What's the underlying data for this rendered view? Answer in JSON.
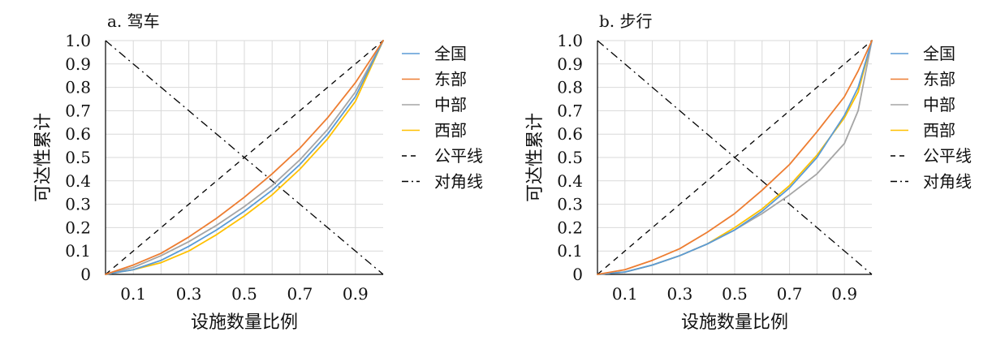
{
  "chart_data": [
    {
      "type": "line",
      "title": "a. 驾车",
      "xlabel": "设施数量比例",
      "ylabel": "可达性累计",
      "xlim": [
        0,
        1
      ],
      "ylim": [
        0,
        1
      ],
      "xticks": [
        "0.1",
        "0.3",
        "0.5",
        "0.7",
        "0.9"
      ],
      "yticks": [
        "0",
        "0.1",
        "0.2",
        "0.3",
        "0.4",
        "0.5",
        "0.6",
        "0.7",
        "0.8",
        "0.9",
        "1.0"
      ],
      "grid": true,
      "legend_position": "right",
      "series": [
        {
          "name": "全国",
          "color": "#5b9bd5",
          "style": "solid",
          "x": [
            0,
            0.1,
            0.2,
            0.3,
            0.4,
            0.5,
            0.6,
            0.7,
            0.8,
            0.9,
            1.0
          ],
          "y": [
            0,
            0.02,
            0.06,
            0.12,
            0.19,
            0.27,
            0.36,
            0.47,
            0.6,
            0.76,
            1.0
          ]
        },
        {
          "name": "东部",
          "color": "#ed7d31",
          "style": "solid",
          "x": [
            0,
            0.1,
            0.2,
            0.3,
            0.4,
            0.5,
            0.6,
            0.7,
            0.8,
            0.9,
            1.0
          ],
          "y": [
            0,
            0.04,
            0.09,
            0.16,
            0.24,
            0.33,
            0.43,
            0.54,
            0.67,
            0.82,
            1.0
          ]
        },
        {
          "name": "中部",
          "color": "#a5a5a5",
          "style": "solid",
          "x": [
            0,
            0.1,
            0.2,
            0.3,
            0.4,
            0.5,
            0.6,
            0.7,
            0.8,
            0.9,
            1.0
          ],
          "y": [
            0,
            0.03,
            0.08,
            0.14,
            0.21,
            0.29,
            0.38,
            0.49,
            0.62,
            0.78,
            1.0
          ]
        },
        {
          "name": "西部",
          "color": "#ffc000",
          "style": "solid",
          "x": [
            0,
            0.1,
            0.2,
            0.3,
            0.4,
            0.5,
            0.6,
            0.7,
            0.8,
            0.9,
            1.0
          ],
          "y": [
            0,
            0.02,
            0.05,
            0.1,
            0.17,
            0.25,
            0.34,
            0.45,
            0.58,
            0.74,
            1.0
          ]
        },
        {
          "name": "公平线",
          "color": "#000000",
          "style": "dashed",
          "x": [
            0,
            1
          ],
          "y": [
            0,
            1
          ]
        },
        {
          "name": "对角线",
          "color": "#000000",
          "style": "dashdot",
          "x": [
            0,
            1
          ],
          "y": [
            1,
            0
          ]
        }
      ]
    },
    {
      "type": "line",
      "title": "b. 步行",
      "xlabel": "设施数量比例",
      "ylabel": "可达性累计",
      "xlim": [
        0,
        1
      ],
      "ylim": [
        0,
        1
      ],
      "xticks": [
        "0.1",
        "0.3",
        "0.5",
        "0.7",
        "0.9"
      ],
      "yticks": [
        "0",
        "0.1",
        "0.2",
        "0.3",
        "0.4",
        "0.5",
        "0.6",
        "0.7",
        "0.8",
        "0.9",
        "1.0"
      ],
      "grid": true,
      "legend_position": "right",
      "series": [
        {
          "name": "全国",
          "color": "#5b9bd5",
          "style": "solid",
          "x": [
            0,
            0.1,
            0.2,
            0.3,
            0.4,
            0.5,
            0.6,
            0.7,
            0.8,
            0.9,
            0.95,
            1.0
          ],
          "y": [
            0,
            0.01,
            0.04,
            0.08,
            0.13,
            0.19,
            0.27,
            0.37,
            0.5,
            0.68,
            0.8,
            1.0
          ]
        },
        {
          "name": "东部",
          "color": "#ed7d31",
          "style": "solid",
          "x": [
            0,
            0.1,
            0.2,
            0.3,
            0.4,
            0.5,
            0.6,
            0.7,
            0.8,
            0.9,
            0.95,
            1.0
          ],
          "y": [
            0,
            0.02,
            0.06,
            0.11,
            0.18,
            0.26,
            0.36,
            0.47,
            0.61,
            0.76,
            0.87,
            1.0
          ]
        },
        {
          "name": "中部",
          "color": "#a5a5a5",
          "style": "solid",
          "x": [
            0,
            0.1,
            0.2,
            0.3,
            0.4,
            0.5,
            0.6,
            0.7,
            0.8,
            0.9,
            0.95,
            1.0
          ],
          "y": [
            0,
            0.01,
            0.04,
            0.08,
            0.13,
            0.19,
            0.26,
            0.34,
            0.43,
            0.56,
            0.7,
            1.0
          ]
        },
        {
          "name": "西部",
          "color": "#ffc000",
          "style": "solid",
          "x": [
            0,
            0.1,
            0.2,
            0.3,
            0.4,
            0.5,
            0.6,
            0.7,
            0.8,
            0.9,
            0.95,
            1.0
          ],
          "y": [
            0,
            0.01,
            0.04,
            0.08,
            0.13,
            0.2,
            0.28,
            0.38,
            0.51,
            0.67,
            0.78,
            1.0
          ]
        },
        {
          "name": "公平线",
          "color": "#000000",
          "style": "dashed",
          "x": [
            0,
            1
          ],
          "y": [
            0,
            1
          ]
        },
        {
          "name": "对角线",
          "color": "#000000",
          "style": "dashdot",
          "x": [
            0,
            1
          ],
          "y": [
            1,
            0
          ]
        }
      ]
    }
  ]
}
